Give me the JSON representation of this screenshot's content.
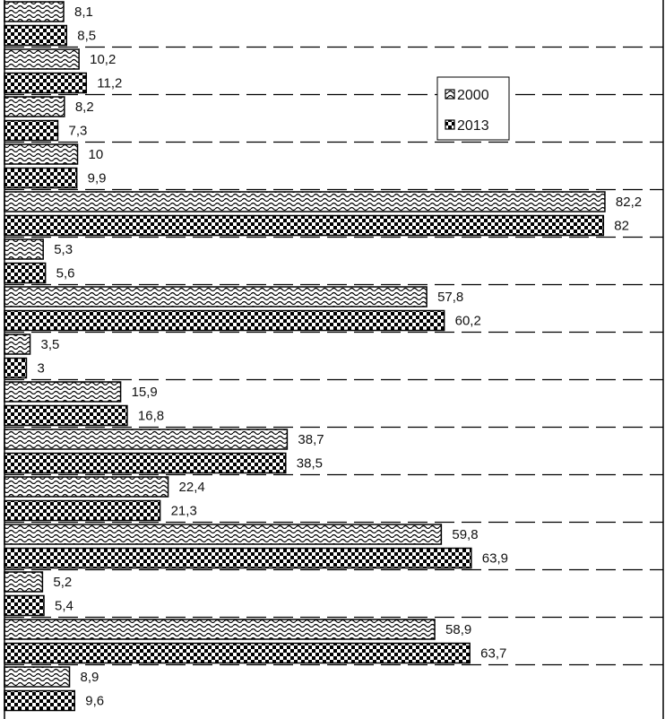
{
  "chart_data": {
    "type": "bar",
    "orientation": "horizontal",
    "categories": [
      "",
      "",
      "",
      "",
      "",
      "",
      "",
      "",
      "",
      "",
      "",
      "",
      "",
      "",
      ""
    ],
    "series": [
      {
        "name": "2000",
        "pattern": "wavy-hatch",
        "values": [
          8.1,
          10.2,
          8.2,
          10,
          82.2,
          5.3,
          57.8,
          3.5,
          15.9,
          38.7,
          22.4,
          59.8,
          5.2,
          58.9,
          8.9
        ]
      },
      {
        "name": "2013",
        "pattern": "checkerboard",
        "values": [
          8.5,
          11.2,
          7.3,
          9.9,
          82,
          5.6,
          60.2,
          3,
          16.8,
          38.5,
          21.3,
          63.9,
          5.4,
          63.7,
          9.6
        ]
      }
    ],
    "value_labels_2000": [
      "8,1",
      "10,2",
      "8,2",
      "10",
      "82,2",
      "5,3",
      "57,8",
      "3,5",
      "15,9",
      "38,7",
      "22,4",
      "59,8",
      "5,2",
      "58,9",
      "8,9"
    ],
    "value_labels_2013": [
      "8,5",
      "11,2",
      "7,3",
      "9,9",
      "82",
      "5,6",
      "60,2",
      "3",
      "16,8",
      "38,5",
      "21,3",
      "63,9",
      "5,4",
      "63,7",
      "9,6"
    ],
    "xlim": [
      0,
      90
    ],
    "grid": "dashed horizontal separators between category groups",
    "legend_position": "upper-right",
    "colors": {
      "bar_fill": "#000000",
      "bar_background": "#ffffff",
      "gridline": "#000000"
    }
  }
}
